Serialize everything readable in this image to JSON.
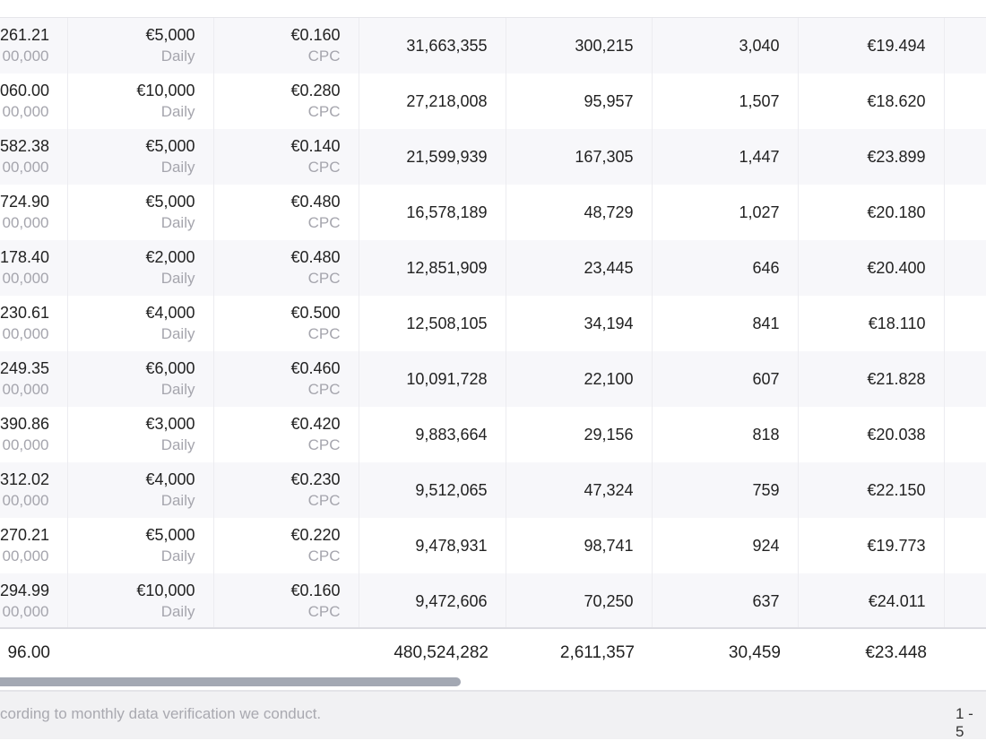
{
  "rows": [
    {
      "spend": "261.21",
      "spend_sub": "00,000",
      "budget": "€5,000",
      "budget_type": "Daily",
      "bid": "€0.160",
      "bid_type": "CPC",
      "impressions": "31,663,355",
      "clicks": "300,215",
      "conversions": "3,040",
      "cost_per": "€19.494"
    },
    {
      "spend": "060.00",
      "spend_sub": "00,000",
      "budget": "€10,000",
      "budget_type": "Daily",
      "bid": "€0.280",
      "bid_type": "CPC",
      "impressions": "27,218,008",
      "clicks": "95,957",
      "conversions": "1,507",
      "cost_per": "€18.620"
    },
    {
      "spend": "582.38",
      "spend_sub": "00,000",
      "budget": "€5,000",
      "budget_type": "Daily",
      "bid": "€0.140",
      "bid_type": "CPC",
      "impressions": "21,599,939",
      "clicks": "167,305",
      "conversions": "1,447",
      "cost_per": "€23.899"
    },
    {
      "spend": "724.90",
      "spend_sub": "00,000",
      "budget": "€5,000",
      "budget_type": "Daily",
      "bid": "€0.480",
      "bid_type": "CPC",
      "impressions": "16,578,189",
      "clicks": "48,729",
      "conversions": "1,027",
      "cost_per": "€20.180"
    },
    {
      "spend": "178.40",
      "spend_sub": "00,000",
      "budget": "€2,000",
      "budget_type": "Daily",
      "bid": "€0.480",
      "bid_type": "CPC",
      "impressions": "12,851,909",
      "clicks": "23,445",
      "conversions": "646",
      "cost_per": "€20.400"
    },
    {
      "spend": "230.61",
      "spend_sub": "00,000",
      "budget": "€4,000",
      "budget_type": "Daily",
      "bid": "€0.500",
      "bid_type": "CPC",
      "impressions": "12,508,105",
      "clicks": "34,194",
      "conversions": "841",
      "cost_per": "€18.110"
    },
    {
      "spend": "249.35",
      "spend_sub": "00,000",
      "budget": "€6,000",
      "budget_type": "Daily",
      "bid": "€0.460",
      "bid_type": "CPC",
      "impressions": "10,091,728",
      "clicks": "22,100",
      "conversions": "607",
      "cost_per": "€21.828"
    },
    {
      "spend": "390.86",
      "spend_sub": "00,000",
      "budget": "€3,000",
      "budget_type": "Daily",
      "bid": "€0.420",
      "bid_type": "CPC",
      "impressions": "9,883,664",
      "clicks": "29,156",
      "conversions": "818",
      "cost_per": "€20.038"
    },
    {
      "spend": "312.02",
      "spend_sub": "00,000",
      "budget": "€4,000",
      "budget_type": "Daily",
      "bid": "€0.230",
      "bid_type": "CPC",
      "impressions": "9,512,065",
      "clicks": "47,324",
      "conversions": "759",
      "cost_per": "€22.150"
    },
    {
      "spend": "270.21",
      "spend_sub": "00,000",
      "budget": "€5,000",
      "budget_type": "Daily",
      "bid": "€0.220",
      "bid_type": "CPC",
      "impressions": "9,478,931",
      "clicks": "98,741",
      "conversions": "924",
      "cost_per": "€19.773"
    },
    {
      "spend": "294.99",
      "spend_sub": "00,000",
      "budget": "€10,000",
      "budget_type": "Daily",
      "bid": "€0.160",
      "bid_type": "CPC",
      "impressions": "9,472,606",
      "clicks": "70,250",
      "conversions": "637",
      "cost_per": "€24.011"
    }
  ],
  "totals": {
    "spend": "96.00",
    "impressions": "480,524,282",
    "clicks": "2,611,357",
    "conversions": "30,459",
    "cost_per": "€23.448"
  },
  "footer": {
    "note": "cording to monthly data verification we conduct.",
    "pagination": "1 - 5"
  }
}
